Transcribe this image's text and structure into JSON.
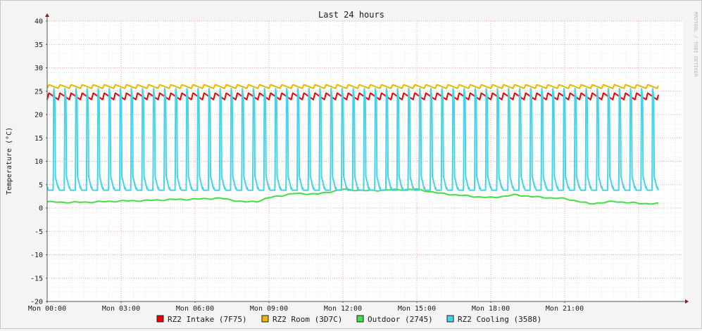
{
  "chart_data": {
    "type": "line",
    "title": "Last 24 hours",
    "ylabel": "Temperature (°C)",
    "watermark": "RRDTOOL / TOBI OETIKER",
    "ylim": [
      -20,
      40
    ],
    "y_ticks": [
      40,
      35,
      30,
      25,
      20,
      15,
      10,
      5,
      0,
      -5,
      -10,
      -15,
      -20
    ],
    "xlim_hours": [
      0,
      25.8
    ],
    "x_ticks": [
      {
        "hour": 0,
        "label": "Mon 00:00"
      },
      {
        "hour": 3,
        "label": "Mon 03:00"
      },
      {
        "hour": 6,
        "label": "Mon 06:00"
      },
      {
        "hour": 9,
        "label": "Mon 09:00"
      },
      {
        "hour": 12,
        "label": "Mon 12:00"
      },
      {
        "hour": 15,
        "label": "Mon 15:00"
      },
      {
        "hour": 18,
        "label": "Mon 18:00"
      },
      {
        "hour": 21,
        "label": "Mon 21:00"
      }
    ],
    "grid": true,
    "legend_position": "bottom",
    "series": [
      {
        "name": "RZ2 Intake (7F75)",
        "color": "#ee0000",
        "pattern": "periodic",
        "period_hours": 0.45,
        "low": 23.2,
        "high": 24.6
      },
      {
        "name": "RZ2 Room (3D7C)",
        "color": "#e6b800",
        "pattern": "periodic",
        "period_hours": 0.45,
        "low": 25.6,
        "high": 26.4
      },
      {
        "name": "Outdoor (2745)",
        "color": "#44dd44",
        "pattern": "trend",
        "x": [
          0,
          1,
          2,
          3,
          4,
          5,
          6,
          7,
          8,
          8.5,
          9,
          10,
          11,
          12,
          13,
          14,
          15,
          16,
          17,
          18,
          19,
          20,
          21,
          21.5,
          22,
          23,
          24,
          24.8
        ],
        "values": [
          1.3,
          1.2,
          1.3,
          1.5,
          1.6,
          1.8,
          1.9,
          2.1,
          1.3,
          1.4,
          2.2,
          3.1,
          3.0,
          4.0,
          3.7,
          3.9,
          4.0,
          3.1,
          2.6,
          2.2,
          2.8,
          2.3,
          2.0,
          1.5,
          0.9,
          1.4,
          1.0,
          0.9
        ]
      },
      {
        "name": "RZ2 Cooling (3588)",
        "color": "#44d4e8",
        "pattern": "periodic-spike",
        "period_hours": 0.45,
        "low": 3.8,
        "high": 26.0
      }
    ]
  }
}
